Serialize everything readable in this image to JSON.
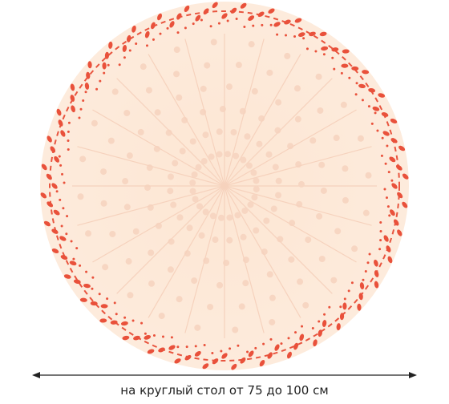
{
  "caption": "на круглый стол от 75 до 100 см"
}
